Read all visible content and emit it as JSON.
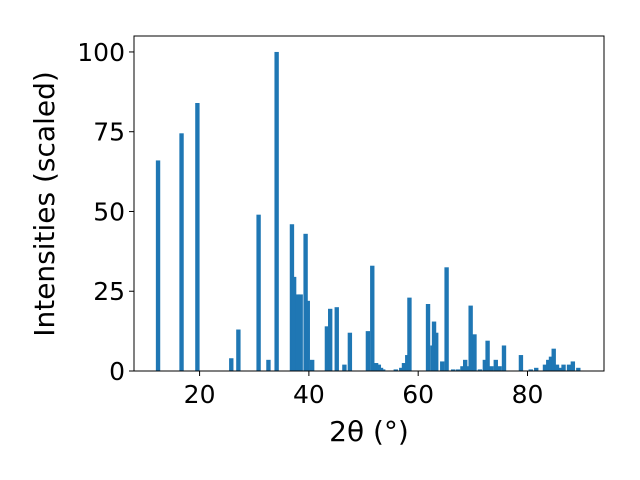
{
  "chart_data": {
    "type": "bar",
    "xlabel": "2θ (°)",
    "ylabel": "Intensities (scaled)",
    "title": "",
    "xlim": [
      8,
      94
    ],
    "ylim": [
      0,
      105
    ],
    "xticks": [
      20,
      40,
      60,
      80
    ],
    "yticks": [
      0,
      25,
      50,
      75,
      100
    ],
    "grid": false,
    "legend": "none",
    "bar_color": "#1f77b4",
    "bar_width": 0.8,
    "x": [
      12.4,
      16.7,
      19.6,
      25.8,
      27.1,
      30.8,
      32.6,
      34.1,
      36.9,
      37.3,
      37.9,
      38.5,
      39.4,
      39.8,
      40.6,
      43.3,
      43.9,
      45.1,
      46.5,
      47.5,
      50.8,
      51.6,
      52.3,
      52.8,
      53.2,
      53.6,
      55.9,
      56.9,
      57.4,
      58.0,
      58.4,
      61.8,
      62.6,
      62.9,
      63.3,
      64.4,
      65.2,
      66.4,
      67.3,
      68.1,
      68.6,
      69.2,
      69.6,
      69.8,
      70.3,
      71.3,
      72.2,
      72.7,
      73.4,
      74.2,
      74.9,
      75.7,
      78.8,
      80.6,
      81.6,
      83.2,
      83.8,
      84.3,
      84.8,
      85.4,
      86.1,
      86.6,
      87.6,
      88.3,
      89.3
    ],
    "values": [
      66,
      74.5,
      84,
      4,
      13,
      49,
      3.5,
      100,
      46,
      29.5,
      24,
      24,
      43,
      22,
      3.5,
      14,
      19.5,
      20,
      2,
      12,
      12.5,
      33,
      2.5,
      2,
      1,
      0.5,
      0.5,
      1,
      2.5,
      5,
      23,
      21,
      8,
      15.5,
      12,
      3,
      32.5,
      0.5,
      0.5,
      1.5,
      3.5,
      1.5,
      20.5,
      7,
      11.5,
      0.5,
      3.5,
      9.5,
      1.5,
      3.5,
      1.5,
      8,
      5,
      0.5,
      1,
      2,
      3.5,
      4.5,
      7,
      2,
      1,
      2,
      2,
      3,
      1
    ]
  }
}
